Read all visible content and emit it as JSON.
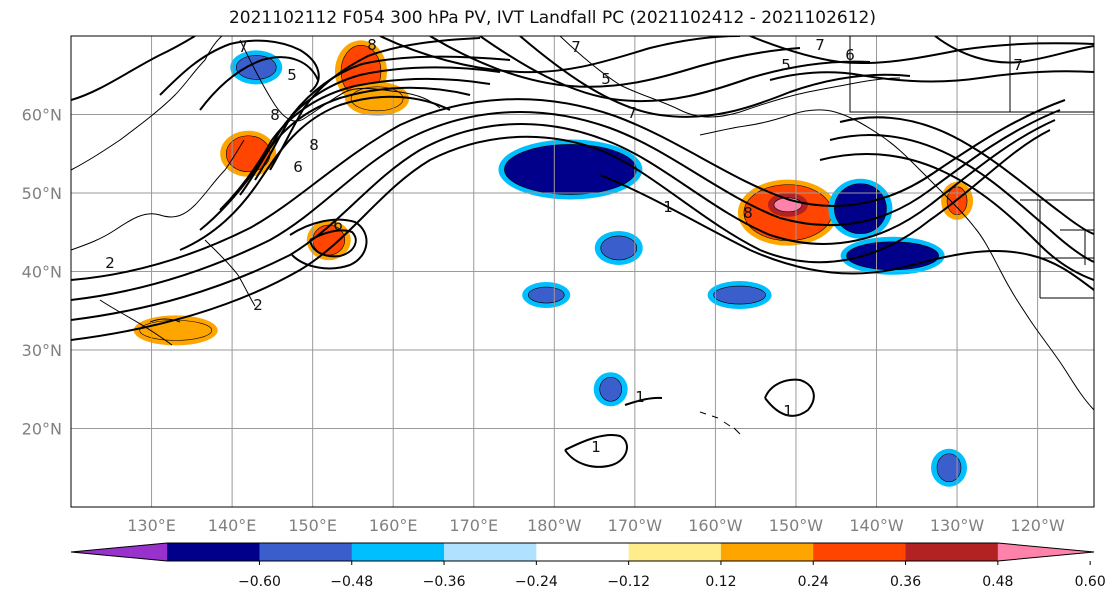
{
  "title": "2021102112 F054 300 hPa PV, IVT Landfall PC (2021102412 - 2021102612)",
  "lat_labels": [
    "60°N",
    "50°N",
    "40°N",
    "30°N",
    "20°N"
  ],
  "lon_labels": [
    "130°E",
    "140°E",
    "150°E",
    "160°E",
    "170°E",
    "180°W",
    "170°W",
    "160°W",
    "150°W",
    "140°W",
    "130°W",
    "120°W"
  ],
  "colorbar": {
    "colors": [
      "#9932cc",
      "#00008b",
      "#3a5fcd",
      "#00bfff",
      "#b0e2ff",
      "#ffffff",
      "#ffec8b",
      "#ffa500",
      "#ff4500",
      "#b22222",
      "#ff82ab"
    ],
    "tick_labels": [
      "−0.60",
      "−0.48",
      "−0.36",
      "−0.24",
      "−0.12",
      "0.12",
      "0.24",
      "0.36",
      "0.48",
      "0.60"
    ]
  },
  "contour_labels": [
    "7",
    "5",
    "8",
    "8",
    "6",
    "6",
    "8",
    "2",
    "2",
    "7",
    "5",
    "7",
    "7",
    "5",
    "6",
    "7",
    "8",
    "1",
    "1",
    "1",
    "1"
  ],
  "blobs": [
    {
      "name": "pv-positive-kamchatka",
      "color": "#ff4500",
      "outline": "#ffa500",
      "lat": 65.5,
      "lon": 156,
      "rx": 20,
      "ry": 26
    },
    {
      "name": "pv-positive-okhotsk",
      "color": "#ffa500",
      "outline": "#ffa500",
      "lat": 62,
      "lon": 158,
      "rx": 26,
      "ry": 12
    },
    {
      "name": "pv-positive-sakhalin",
      "color": "#ff4500",
      "outline": "#ffa500",
      "lat": 55,
      "lon": 142,
      "rx": 22,
      "ry": 18
    },
    {
      "name": "pv-positive-kuril",
      "color": "#ff4500",
      "outline": "#ffa500",
      "lat": 44,
      "lon": 152,
      "rx": 16,
      "ry": 15
    },
    {
      "name": "pv-positive-japan",
      "color": "#ffa500",
      "outline": "#ffa500",
      "lat": 32.5,
      "lon": 133,
      "rx": 36,
      "ry": 10
    },
    {
      "name": "pv-positive-gulf",
      "color": "#ff4500",
      "outline": "#ffa500",
      "lat": 47.5,
      "lon": -151,
      "rx": 44,
      "ry": 28
    },
    {
      "name": "pv-positive-gulf-core",
      "color": "#ff82ab",
      "outline": "#b22222",
      "lat": 48.5,
      "lon": -151,
      "rx": 14,
      "ry": 7
    },
    {
      "name": "pv-positive-oregon",
      "color": "#ff4500",
      "outline": "#ffa500",
      "lat": 49,
      "lon": -130,
      "rx": 10,
      "ry": 14
    },
    {
      "name": "pv-negative-north-pacific",
      "color": "#00008b",
      "outline": "#00bfff",
      "lat": 53,
      "lon": -178,
      "rx": 66,
      "ry": 25
    },
    {
      "name": "pv-negative-alaska",
      "color": "#00008b",
      "outline": "#00bfff",
      "lat": 48,
      "lon": -142,
      "rx": 26,
      "ry": 25
    },
    {
      "name": "pv-negative-bc",
      "color": "#00008b",
      "outline": "#00bfff",
      "lat": 42,
      "lon": -138,
      "rx": 46,
      "ry": 14
    },
    {
      "name": "pv-negative-mid-1",
      "color": "#3a5fcd",
      "outline": "#00bfff",
      "lat": 43,
      "lon": -172,
      "rx": 18,
      "ry": 12
    },
    {
      "name": "pv-negative-mid-2",
      "color": "#3a5fcd",
      "outline": "#00bfff",
      "lat": 37,
      "lon": 179,
      "rx": 18,
      "ry": 8
    },
    {
      "name": "pv-negative-mid-3",
      "color": "#3a5fcd",
      "outline": "#00bfff",
      "lat": 37,
      "lon": -157,
      "rx": 26,
      "ry": 9
    },
    {
      "name": "pv-negative-sea-okhotsk",
      "color": "#3a5fcd",
      "outline": "#00bfff",
      "lat": 66,
      "lon": 143,
      "rx": 20,
      "ry": 12
    },
    {
      "name": "pv-negative-hawaii-north",
      "color": "#3a5fcd",
      "outline": "#00bfff",
      "lat": 25,
      "lon": -173,
      "rx": 11,
      "ry": 12
    },
    {
      "name": "pv-negative-baja",
      "color": "#3a5fcd",
      "outline": "#00bfff",
      "lat": 15,
      "lon": -131,
      "rx": 12,
      "ry": 14
    }
  ]
}
